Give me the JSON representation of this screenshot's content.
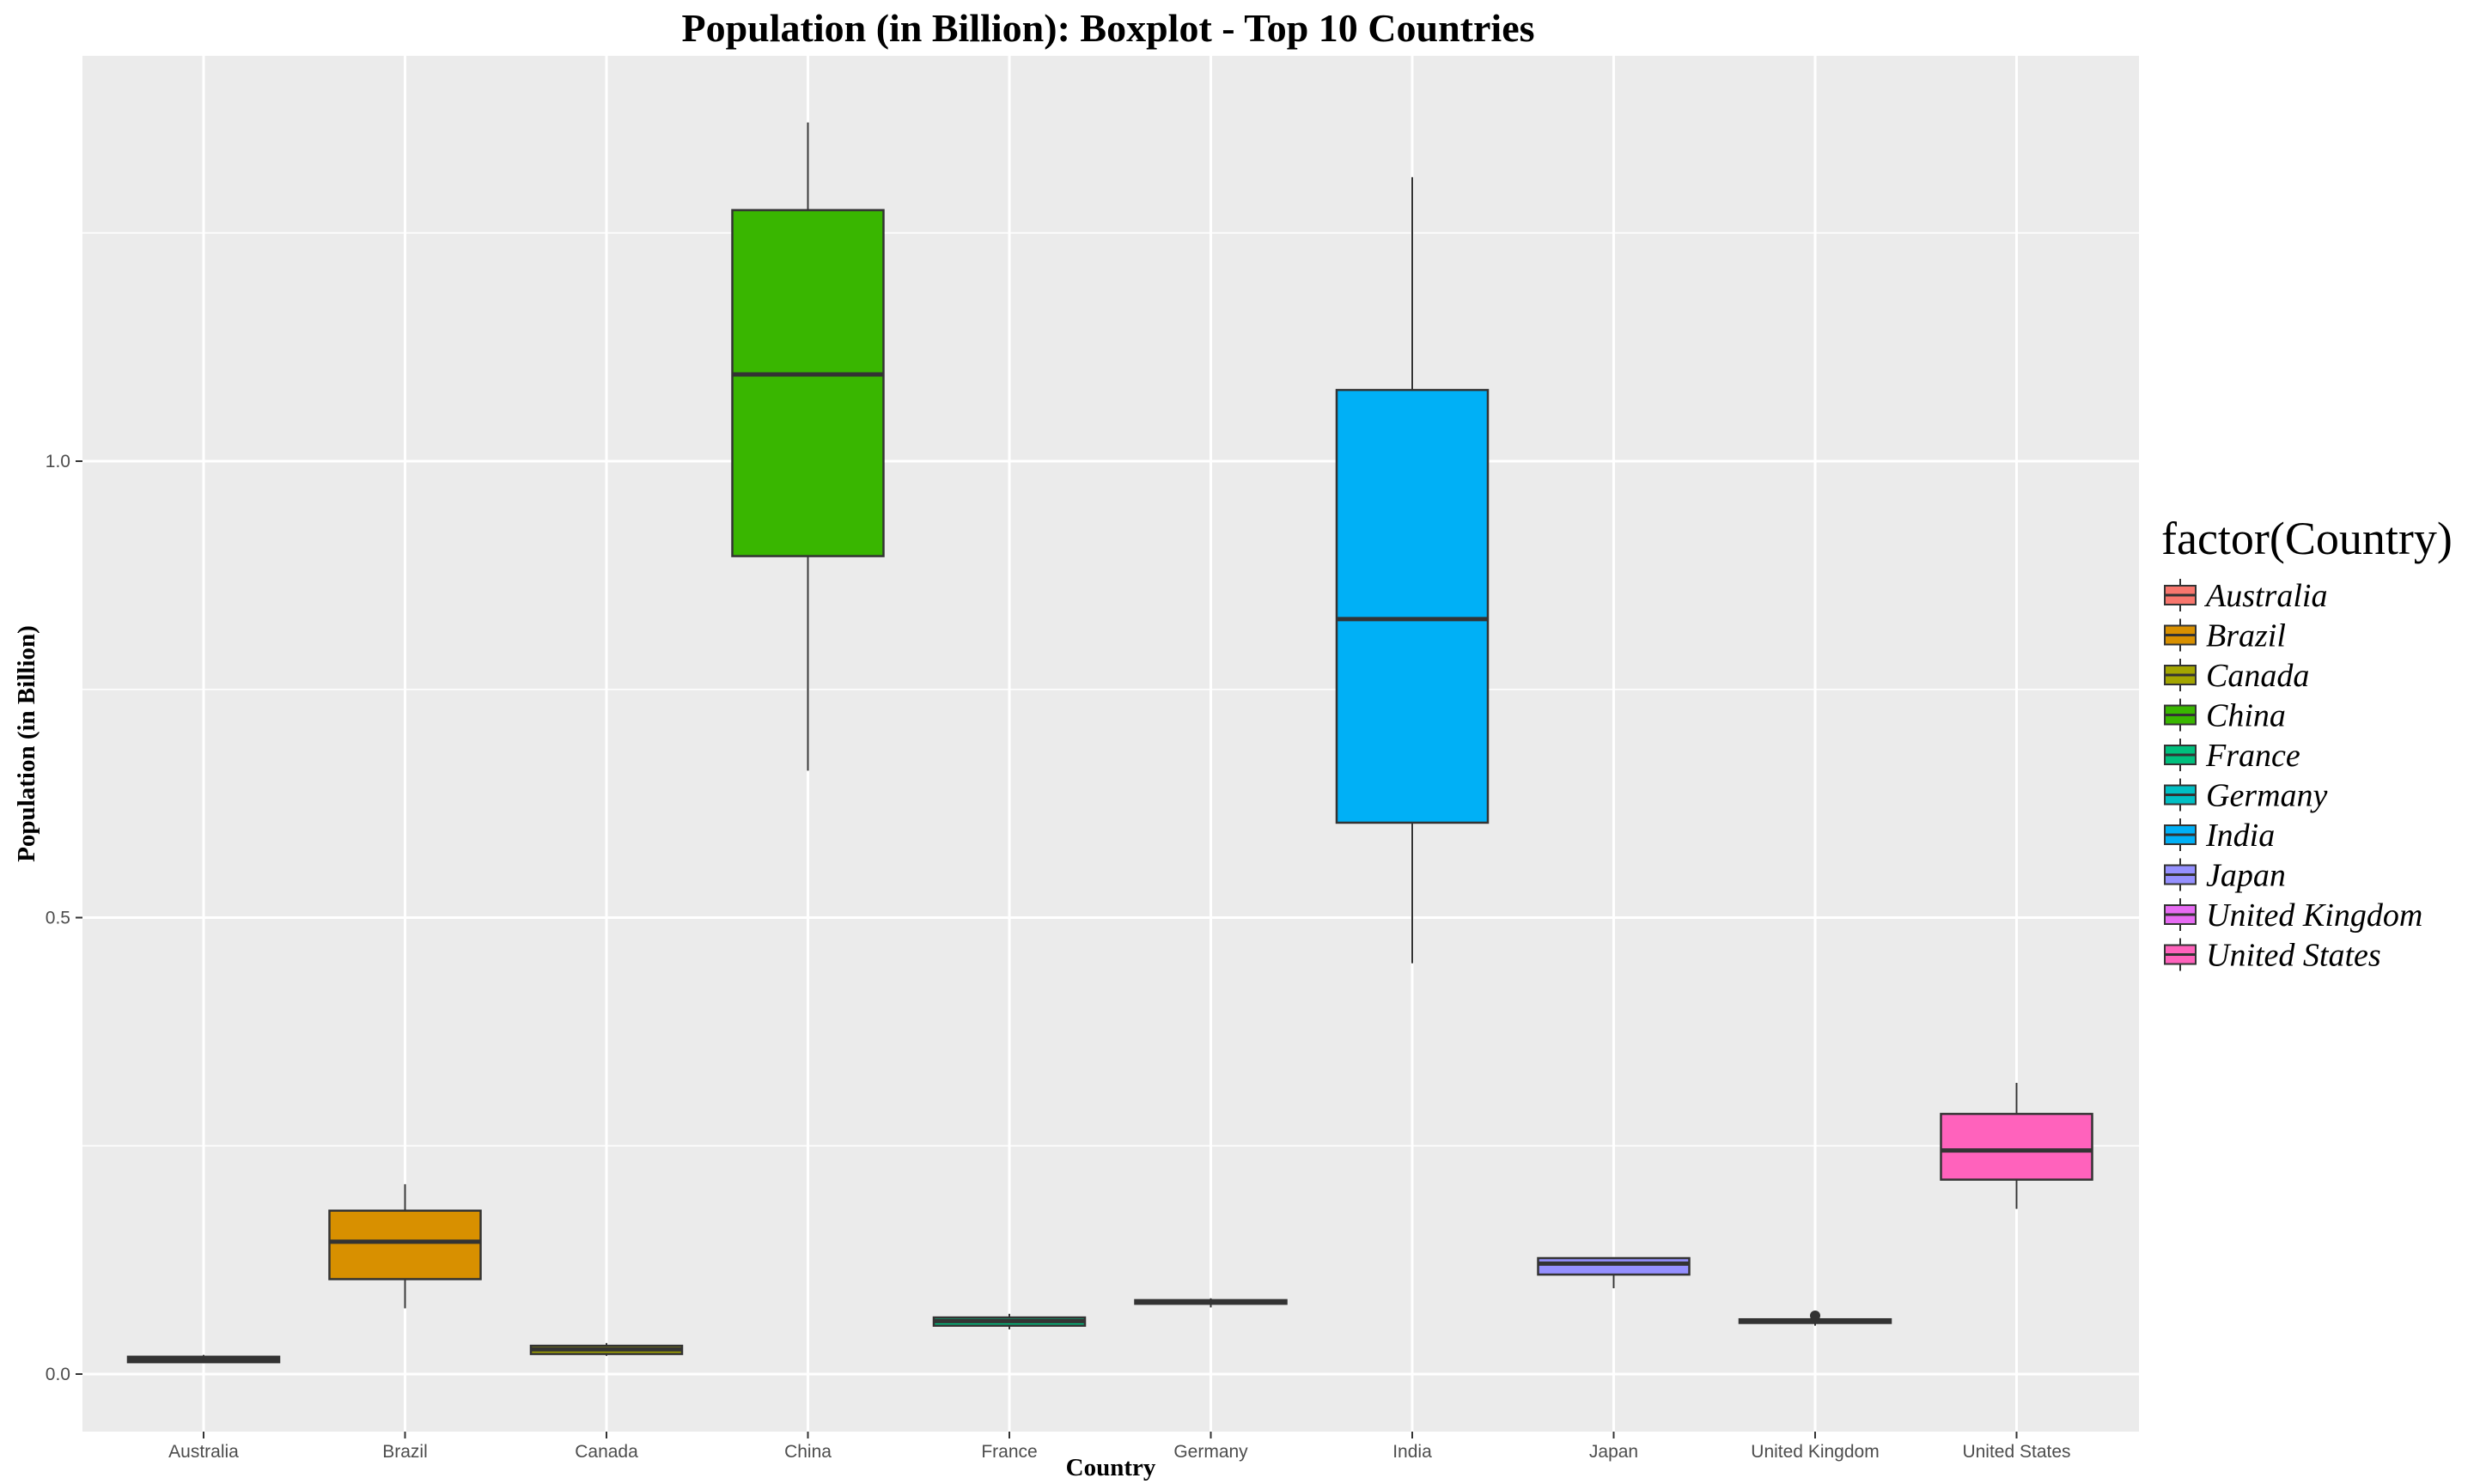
{
  "chart_data": {
    "type": "boxplot",
    "title": "Population (in Billion): Boxplot - Top 10 Countries",
    "xlabel": "Country",
    "ylabel": "Population (in Billion)",
    "ylim": [
      -0.06,
      1.44
    ],
    "yticks": [
      0.0,
      0.5,
      1.0
    ],
    "ytick_labels": [
      "0.0",
      "0.5",
      "1.0"
    ],
    "grid": true,
    "legend": {
      "title": "factor(Country)",
      "placement": "right"
    },
    "categories": [
      "Australia",
      "Brazil",
      "Canada",
      "China",
      "France",
      "Germany",
      "India",
      "Japan",
      "United Kingdom",
      "United States"
    ],
    "series": [
      {
        "name": "Australia",
        "color": "#F8766D",
        "whisker_low": 0.012,
        "q1": 0.013,
        "median": 0.016,
        "q3": 0.019,
        "whisker_high": 0.021,
        "outliers": []
      },
      {
        "name": "Brazil",
        "color": "#D89000",
        "whisker_low": 0.072,
        "q1": 0.104,
        "median": 0.145,
        "q3": 0.179,
        "whisker_high": 0.208,
        "outliers": []
      },
      {
        "name": "Canada",
        "color": "#A3A500",
        "whisker_low": 0.02,
        "q1": 0.022,
        "median": 0.027,
        "q3": 0.031,
        "whisker_high": 0.034,
        "outliers": []
      },
      {
        "name": "China",
        "color": "#39B600",
        "whisker_low": 0.661,
        "q1": 0.896,
        "median": 1.095,
        "q3": 1.275,
        "whisker_high": 1.371,
        "outliers": []
      },
      {
        "name": "France",
        "color": "#00BF7D",
        "whisker_low": 0.049,
        "q1": 0.053,
        "median": 0.058,
        "q3": 0.062,
        "whisker_high": 0.066,
        "outliers": []
      },
      {
        "name": "Germany",
        "color": "#00BFC4",
        "whisker_low": 0.073,
        "q1": 0.077,
        "median": 0.079,
        "q3": 0.081,
        "whisker_high": 0.083,
        "outliers": []
      },
      {
        "name": "India",
        "color": "#00B0F6",
        "whisker_low": 0.45,
        "q1": 0.604,
        "median": 0.827,
        "q3": 1.078,
        "whisker_high": 1.311,
        "outliers": []
      },
      {
        "name": "Japan",
        "color": "#9590FF",
        "whisker_low": 0.094,
        "q1": 0.109,
        "median": 0.121,
        "q3": 0.127,
        "whisker_high": 0.128,
        "outliers": []
      },
      {
        "name": "United Kingdom",
        "color": "#E76BF3",
        "whisker_low": 0.053,
        "q1": 0.056,
        "median": 0.058,
        "q3": 0.06,
        "whisker_high": 0.062,
        "outliers": [
          0.064
        ]
      },
      {
        "name": "United States",
        "color": "#FF62BC",
        "whisker_low": 0.181,
        "q1": 0.213,
        "median": 0.245,
        "q3": 0.285,
        "whisker_high": 0.319,
        "outliers": []
      }
    ]
  }
}
